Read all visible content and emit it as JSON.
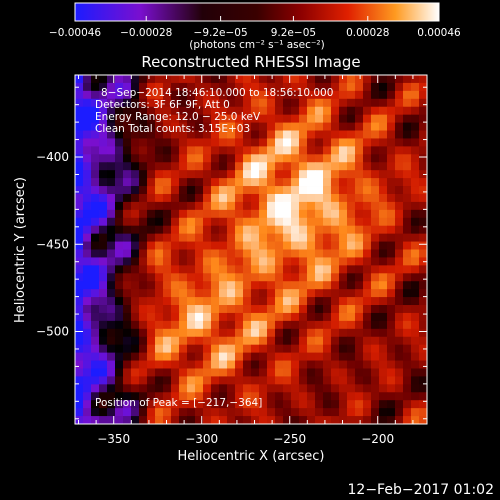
{
  "chart_data": {
    "type": "heatmap",
    "title": "Reconstructed RHESSI Image",
    "xlabel": "Heliocentric X (arcsec)",
    "ylabel": "Heliocentric Y (arcsec)",
    "xlim": [
      -372,
      -172
    ],
    "ylim": [
      -553,
      -353
    ],
    "x_ticks": [
      -350,
      -300,
      -250,
      -200
    ],
    "y_ticks": [
      -400,
      -450,
      -500
    ],
    "x_tick_labels": [
      "−350",
      "−300",
      "−250",
      "−200"
    ],
    "y_tick_labels": [
      "−400",
      "−450",
      "−500"
    ],
    "colorbar": {
      "min": -0.00046,
      "max": 0.00046,
      "ticks": [
        -0.00046,
        -0.00028,
        -9.2e-05,
        9.2e-05,
        0.00028,
        0.00046
      ],
      "tick_labels": [
        "−0.00046",
        "−0.00028",
        "−9.2e−05",
        "9.2e−05",
        "0.00028",
        "0.00046"
      ],
      "unit_label": "(photons cm⁻² s⁻¹ asec⁻²)",
      "colors": [
        "#1c1cff",
        "#7a0fcf",
        "#000000",
        "#6e0000",
        "#d21c00",
        "#ff8a1c",
        "#ffffff"
      ]
    },
    "info_lines": [
      "8−Sep−2014 18:46:10.000 to 18:56:10.000",
      "Detectors: 3F 6F 9F, Att 0",
      "Energy Range: 12.0 − 25.0 keV",
      "Clean    Total counts: 3.15E+03"
    ],
    "peak": {
      "x": -217,
      "y": -364
    },
    "peak_label": "Position of Peak = [−217,−364]",
    "grid": false
  },
  "footer": {
    "timestamp": "12−Feb−2017 01:02"
  }
}
